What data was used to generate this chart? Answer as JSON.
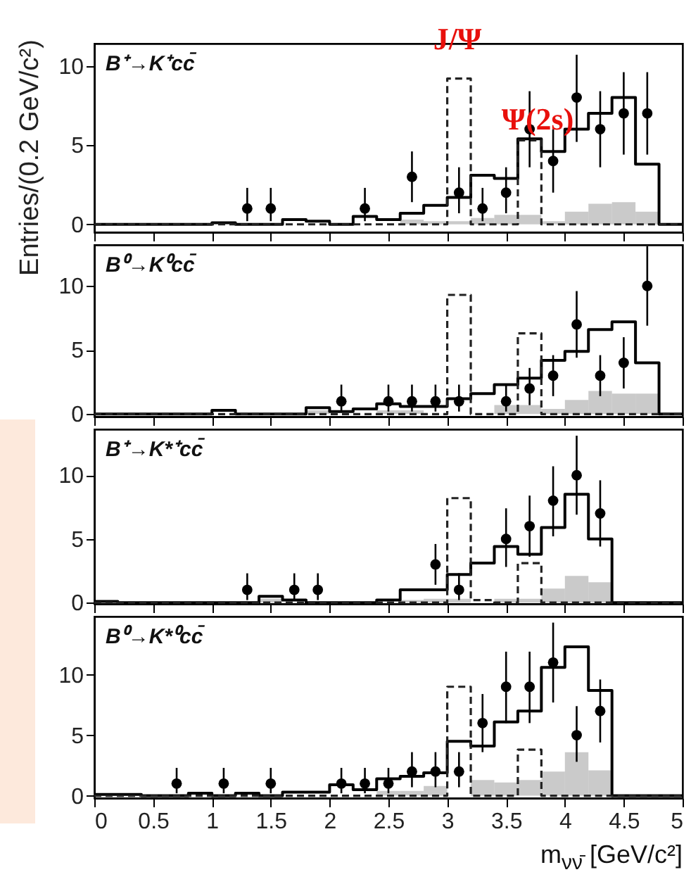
{
  "chart_data": [
    {
      "type": "histogram",
      "ylabel": "Entries/(0.2 GeV/c²)",
      "annotations": [
        "B⁺→K⁺cc̄",
        "J/Ψ",
        "Ψ(2s)"
      ],
      "bins": [
        0,
        0.2,
        0.4,
        0.6,
        0.8,
        1,
        1.2,
        1.4,
        1.6,
        1.8,
        2,
        2.2,
        2.4,
        2.6,
        2.8,
        3,
        3.2,
        3.4,
        3.6,
        3.8,
        4,
        4.2,
        4.4,
        4.6,
        4.8,
        5
      ],
      "xlim": [
        0,
        5
      ],
      "xticks": [
        0,
        0.5,
        1,
        1.5,
        2,
        2.5,
        3,
        3.5,
        4,
        4.5,
        5
      ],
      "ylim": [
        -0.5,
        11.4
      ],
      "yticks": [
        0,
        5,
        10
      ],
      "tick_labels": "y",
      "series": [
        {
          "type": "histogram",
          "color": "#a6a6a6",
          "values": [
            0,
            0,
            0,
            0,
            0,
            0,
            0,
            0,
            0,
            0,
            0,
            0,
            0,
            0.3,
            0.2,
            0.2,
            0.4,
            0.6,
            0.6,
            0.2,
            0.8,
            1.3,
            1.4,
            0.8,
            0
          ]
        },
        {
          "type": "histogram",
          "color": "#000000",
          "line_style": "solid",
          "values": [
            0,
            0,
            0,
            0,
            0,
            0.1,
            0,
            0,
            0.3,
            0.2,
            0,
            0.5,
            0.3,
            0.7,
            1.2,
            1.7,
            3.1,
            2.9,
            5.4,
            4.6,
            6.0,
            7.0,
            8.0,
            3.8,
            0
          ]
        },
        {
          "type": "histogram",
          "color": "#222222",
          "line_style": "dashed",
          "values": [
            0,
            0,
            0,
            0,
            0,
            0,
            0,
            0,
            0,
            0,
            0,
            0,
            0,
            0,
            0,
            9.2,
            0,
            0,
            5.3,
            0,
            0,
            0,
            0,
            0,
            0
          ]
        },
        {
          "type": "scatter",
          "color": "#000000",
          "marker": "circle",
          "x": [
            1.3,
            1.5,
            2.3,
            2.7,
            3.1,
            3.3,
            3.5,
            3.7,
            3.9,
            4.1,
            4.3,
            4.5,
            4.7
          ],
          "values": [
            1,
            1,
            1,
            3,
            2,
            1,
            2,
            6,
            4,
            8,
            6,
            7,
            7
          ],
          "errors": [
            [
              0.2,
              2.3
            ],
            [
              0.2,
              2.3
            ],
            [
              0.2,
              2.3
            ],
            [
              1.4,
              4.6
            ],
            [
              0.7,
              3.6
            ],
            [
              0.2,
              2.3
            ],
            [
              0.7,
              3.6
            ],
            [
              3.6,
              8.4
            ],
            [
              2.0,
              6.0
            ],
            [
              5.2,
              10.7
            ],
            [
              3.6,
              8.4
            ],
            [
              4.4,
              9.6
            ],
            [
              4.4,
              9.6
            ]
          ]
        }
      ]
    },
    {
      "type": "histogram",
      "annotations": [
        "B⁰→K⁰cc̄"
      ],
      "bins": [
        0,
        0.2,
        0.4,
        0.6,
        0.8,
        1,
        1.2,
        1.4,
        1.6,
        1.8,
        2,
        2.2,
        2.4,
        2.6,
        2.8,
        3,
        3.2,
        3.4,
        3.6,
        3.8,
        4,
        4.2,
        4.4,
        4.6,
        4.8,
        5
      ],
      "xlim": [
        0,
        5
      ],
      "xticks": [
        0,
        0.5,
        1,
        1.5,
        2,
        2.5,
        3,
        3.5,
        4,
        4.5,
        5
      ],
      "ylim": [
        -0.2,
        13.2
      ],
      "yticks": [
        0,
        5,
        10
      ],
      "tick_labels": "y",
      "series": [
        {
          "type": "histogram",
          "color": "#a6a6a6",
          "values": [
            0,
            0,
            0,
            0,
            0,
            0,
            0,
            0,
            0,
            0.3,
            0,
            0,
            0.3,
            0.3,
            0,
            0,
            0,
            0.7,
            0.7,
            0.4,
            1.1,
            1.8,
            1.6,
            1.6,
            0
          ]
        },
        {
          "type": "histogram",
          "color": "#000000",
          "line_style": "solid",
          "values": [
            0,
            0,
            0,
            0,
            0,
            0.3,
            0,
            0,
            0,
            0.5,
            0.2,
            0.4,
            0.8,
            0.6,
            0.6,
            1.2,
            1.6,
            2.3,
            2.8,
            4.2,
            4.9,
            6.6,
            7.2,
            4.0,
            0
          ]
        },
        {
          "type": "histogram",
          "color": "#222222",
          "line_style": "dashed",
          "values": [
            0,
            0,
            0,
            0,
            0,
            0,
            0,
            0,
            0,
            0,
            0,
            0,
            0,
            0,
            0,
            9.3,
            0,
            0,
            6.3,
            0,
            0,
            0,
            0,
            0,
            0
          ]
        },
        {
          "type": "scatter",
          "color": "#000000",
          "marker": "circle",
          "x": [
            2.1,
            2.5,
            2.7,
            2.9,
            3.1,
            3.5,
            3.7,
            3.9,
            4.1,
            4.3,
            4.5,
            4.7
          ],
          "values": [
            1,
            1,
            1,
            1,
            1,
            1,
            2,
            3,
            7,
            3,
            4,
            10
          ],
          "errors": [
            [
              0.2,
              2.3
            ],
            [
              0.2,
              2.3
            ],
            [
              0.2,
              2.3
            ],
            [
              0.2,
              2.3
            ],
            [
              0.2,
              2.3
            ],
            [
              0.2,
              2.3
            ],
            [
              0.7,
              3.6
            ],
            [
              1.4,
              4.6
            ],
            [
              4.4,
              9.6
            ],
            [
              1.4,
              4.6
            ],
            [
              2.0,
              6.0
            ],
            [
              6.9,
              13.1
            ]
          ]
        }
      ]
    },
    {
      "type": "histogram",
      "annotations": [
        "B⁺→K*⁺cc̄"
      ],
      "bins": [
        0,
        0.2,
        0.4,
        0.6,
        0.8,
        1,
        1.2,
        1.4,
        1.6,
        1.8,
        2,
        2.2,
        2.4,
        2.6,
        2.8,
        3,
        3.2,
        3.4,
        3.6,
        3.8,
        4,
        4.2,
        4.4,
        4.6,
        4.8,
        5
      ],
      "xlim": [
        0,
        5
      ],
      "xticks": [
        0,
        0.5,
        1,
        1.5,
        2,
        2.5,
        3,
        3.5,
        4,
        4.5,
        5
      ],
      "ylim": [
        -0.1,
        13.6
      ],
      "yticks": [
        0,
        5,
        10
      ],
      "tick_labels": "y",
      "series": [
        {
          "type": "histogram",
          "color": "#a6a6a6",
          "values": [
            0,
            0,
            0,
            0,
            0,
            0,
            0,
            0.3,
            0,
            0,
            0,
            0,
            0,
            0.2,
            0.3,
            0.3,
            0,
            0.3,
            0.3,
            1.1,
            2.1,
            1.6,
            0,
            0,
            0
          ]
        },
        {
          "type": "histogram",
          "color": "#000000",
          "line_style": "solid",
          "values": [
            0.1,
            0,
            0,
            0,
            0,
            0,
            0,
            0.5,
            0.2,
            0,
            0,
            0,
            0.2,
            1.0,
            1.0,
            2.2,
            3.1,
            4.4,
            3.8,
            5.9,
            8.5,
            5.0,
            0,
            0,
            0
          ]
        },
        {
          "type": "histogram",
          "color": "#222222",
          "line_style": "dashed",
          "values": [
            0,
            0,
            0,
            0,
            0,
            0,
            0,
            0,
            0,
            0,
            0,
            0,
            0,
            0,
            0,
            8.2,
            0.2,
            0,
            3.1,
            0,
            0,
            0,
            0,
            0,
            0
          ]
        },
        {
          "type": "scatter",
          "color": "#000000",
          "marker": "circle",
          "x": [
            1.3,
            1.7,
            1.9,
            2.9,
            3.1,
            3.5,
            3.7,
            3.9,
            4.1,
            4.3
          ],
          "values": [
            1,
            1,
            1,
            3,
            1,
            5,
            6,
            8,
            10,
            7
          ],
          "errors": [
            [
              0.2,
              2.3
            ],
            [
              0.2,
              2.3
            ],
            [
              0.2,
              2.3
            ],
            [
              1.4,
              4.6
            ],
            [
              0.2,
              2.3
            ],
            [
              2.8,
              7.4
            ],
            [
              3.6,
              8.4
            ],
            [
              5.2,
              10.7
            ],
            [
              6.9,
              13.1
            ],
            [
              4.4,
              9.6
            ]
          ]
        }
      ]
    },
    {
      "type": "histogram",
      "xlabel": "m$_{νν̄}$ [GeV/c²]",
      "annotations": [
        "B⁰→K*⁰cc̄"
      ],
      "bins": [
        0,
        0.2,
        0.4,
        0.6,
        0.8,
        1,
        1.2,
        1.4,
        1.6,
        1.8,
        2,
        2.2,
        2.4,
        2.6,
        2.8,
        3,
        3.2,
        3.4,
        3.6,
        3.8,
        4,
        4.2,
        4.4,
        4.6,
        4.8,
        5
      ],
      "xlim": [
        0,
        5
      ],
      "xticks": [
        0,
        0.5,
        1,
        1.5,
        2,
        2.5,
        3,
        3.5,
        4,
        4.5,
        5
      ],
      "ylim": [
        -0.2,
        14.8
      ],
      "yticks": [
        0,
        5,
        10
      ],
      "series": [
        {
          "type": "histogram",
          "color": "#a6a6a6",
          "values": [
            0,
            0,
            0,
            0,
            0,
            0,
            0,
            0,
            0,
            0,
            0,
            0,
            0.4,
            0.4,
            0.8,
            0,
            1.3,
            1.1,
            1.3,
            2.0,
            3.6,
            2.1,
            0,
            0,
            0
          ]
        },
        {
          "type": "histogram",
          "color": "#000000",
          "line_style": "solid",
          "values": [
            0.1,
            0.1,
            0,
            0,
            0.2,
            0,
            0.2,
            0,
            0.3,
            0.3,
            0.9,
            0.5,
            1.4,
            1.6,
            1.9,
            4.5,
            4.1,
            6.1,
            7.0,
            10.6,
            12.3,
            8.7,
            0,
            0,
            0
          ]
        },
        {
          "type": "histogram",
          "color": "#222222",
          "line_style": "dashed",
          "values": [
            0,
            0,
            0,
            0,
            0,
            0,
            0,
            0,
            0,
            0,
            0,
            0,
            0,
            0,
            0,
            9.0,
            0,
            0,
            3.8,
            0,
            0,
            0,
            0,
            0,
            0
          ]
        },
        {
          "type": "scatter",
          "color": "#000000",
          "marker": "circle",
          "x": [
            0.7,
            1.1,
            1.5,
            2.1,
            2.3,
            2.5,
            2.7,
            2.9,
            3.1,
            3.3,
            3.5,
            3.7,
            3.9,
            4.1,
            4.3
          ],
          "values": [
            1,
            1,
            1,
            1,
            1,
            1,
            2,
            2,
            2,
            6,
            9,
            9,
            11,
            5,
            7
          ],
          "errors": [
            [
              0.2,
              2.3
            ],
            [
              0.2,
              2.3
            ],
            [
              0.2,
              2.3
            ],
            [
              0.2,
              2.3
            ],
            [
              0.2,
              2.3
            ],
            [
              0.2,
              2.3
            ],
            [
              0.7,
              3.6
            ],
            [
              0.7,
              3.6
            ],
            [
              0.7,
              3.6
            ],
            [
              3.6,
              8.4
            ],
            [
              6.0,
              11.9
            ],
            [
              6.0,
              11.9
            ],
            [
              7.7,
              14.3
            ],
            [
              2.8,
              7.4
            ],
            [
              4.4,
              9.6
            ]
          ]
        }
      ]
    }
  ]
}
